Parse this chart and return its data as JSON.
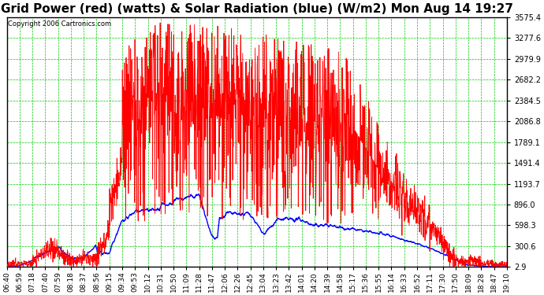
{
  "title": "Grid Power (red) (watts) & Solar Radiation (blue) (W/m2) Mon Aug 14 19:27",
  "yticks": [
    2.9,
    300.6,
    598.3,
    896.0,
    1193.7,
    1491.4,
    1789.1,
    2086.8,
    2384.5,
    2682.2,
    2979.9,
    3277.6,
    3575.4
  ],
  "ymin": 2.9,
  "ymax": 3575.4,
  "copyright": "Copyright 2006 Cartronics.com",
  "bg_color": "#ffffff",
  "plot_bg": "#ffffff",
  "grid_color": "#00cc00",
  "line_red": "#ff0000",
  "line_blue": "#0000ff",
  "x_labels": [
    "06:40",
    "06:59",
    "07:18",
    "07:40",
    "07:59",
    "08:18",
    "08:37",
    "08:56",
    "09:15",
    "09:34",
    "09:53",
    "10:12",
    "10:31",
    "10:50",
    "11:09",
    "11:28",
    "11:47",
    "12:06",
    "12:26",
    "12:45",
    "13:04",
    "13:23",
    "13:42",
    "14:01",
    "14:20",
    "14:39",
    "14:58",
    "15:17",
    "15:36",
    "15:55",
    "16:14",
    "16:33",
    "16:52",
    "17:11",
    "17:30",
    "17:50",
    "18:09",
    "18:28",
    "18:47",
    "19:10"
  ],
  "title_fontsize": 11,
  "copyright_fontsize": 6,
  "tick_fontsize": 7,
  "figsize": [
    6.9,
    3.75
  ],
  "dpi": 100
}
